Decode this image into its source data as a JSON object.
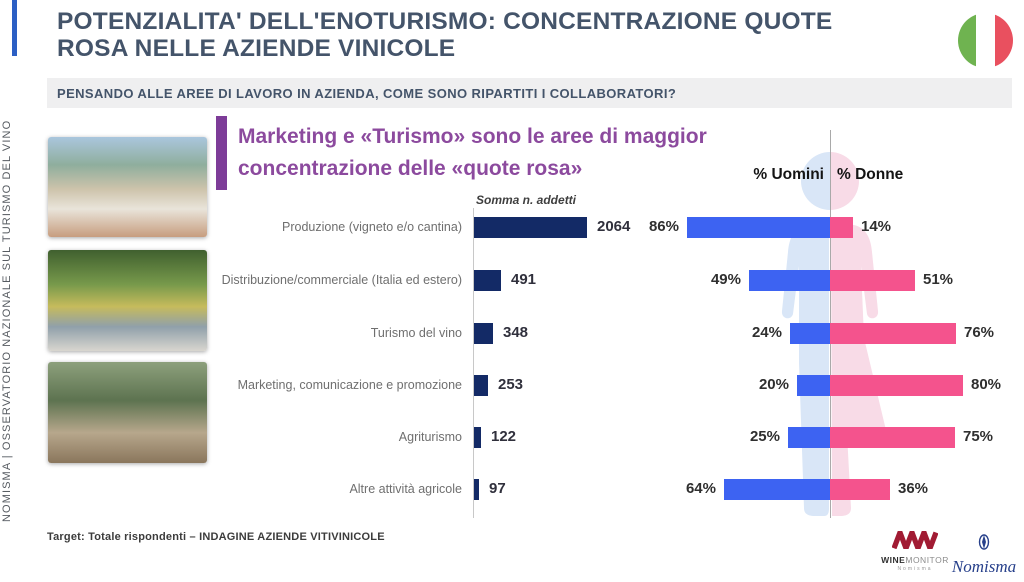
{
  "slide": {
    "title_lines": [
      "POTENZIALITA' DELL'ENOTURISMO: CONCENTRAZIONE QUOTE",
      "ROSA NELLE AZIENDE VINICOLE"
    ],
    "sidebar_text": "NOMISMA | OSSERVATORIO NAZIONALE SUL TURISMO DEL VINO",
    "question": "PENSANDO ALLE AREE DI LAVORO IN AZIENDA, COME SONO RIPARTITI I COLLABORATORI?",
    "heading_lines": [
      "Marketing e «Turismo» sono le aree di maggior",
      "concentrazione delle «quote rosa»"
    ],
    "footer": "Target: Totale rispondenti – INDAGINE AZIENDE VITIVINICOLE"
  },
  "photos": [
    {
      "name": "wine-glass-terrace-photo"
    },
    {
      "name": "vineyard-dinner-table-photo"
    },
    {
      "name": "sommelier-pouring-wine-photo"
    }
  ],
  "chart_data": {
    "type": "bar",
    "title": "Marketing e «Turismo» sono le aree di maggior concentrazione delle «quote rosa»",
    "left_axis_label": "Somma n. addetti",
    "legend": [
      "% Uomini",
      "% Donne"
    ],
    "legend_position": "top-center",
    "grid": false,
    "categories": [
      "Produzione (vigneto e/o cantina)",
      "Distribuzione/commerciale (Italia ed estero)",
      "Turismo del vino",
      "Marketing, comunicazione e promozione",
      "Agriturismo",
      "Altre attività agricole"
    ],
    "series": [
      {
        "name": "Somma n. addetti",
        "values": [
          2064,
          491,
          348,
          253,
          122,
          97
        ]
      },
      {
        "name": "% Uomini",
        "values": [
          86,
          49,
          24,
          20,
          25,
          64
        ],
        "unit": "%"
      },
      {
        "name": "% Donne",
        "values": [
          14,
          51,
          76,
          80,
          75,
          36
        ],
        "unit": "%"
      }
    ],
    "colors": {
      "addetti": "#132a66",
      "uomini": "#3d63f2",
      "donne": "#f4538d",
      "silhouette_male": "#d9e6f7",
      "silhouette_female": "#f8dbe7"
    }
  },
  "flag": {
    "name": "italy-flag",
    "green": "#6fb350",
    "white": "#ffffff",
    "red": "#e9505f"
  },
  "logos": {
    "winemonitor": {
      "word_bold": "WINE",
      "word_light": "MONITOR",
      "subtext": "Nomisma"
    },
    "nomisma": {
      "text": "Nomisma"
    }
  }
}
